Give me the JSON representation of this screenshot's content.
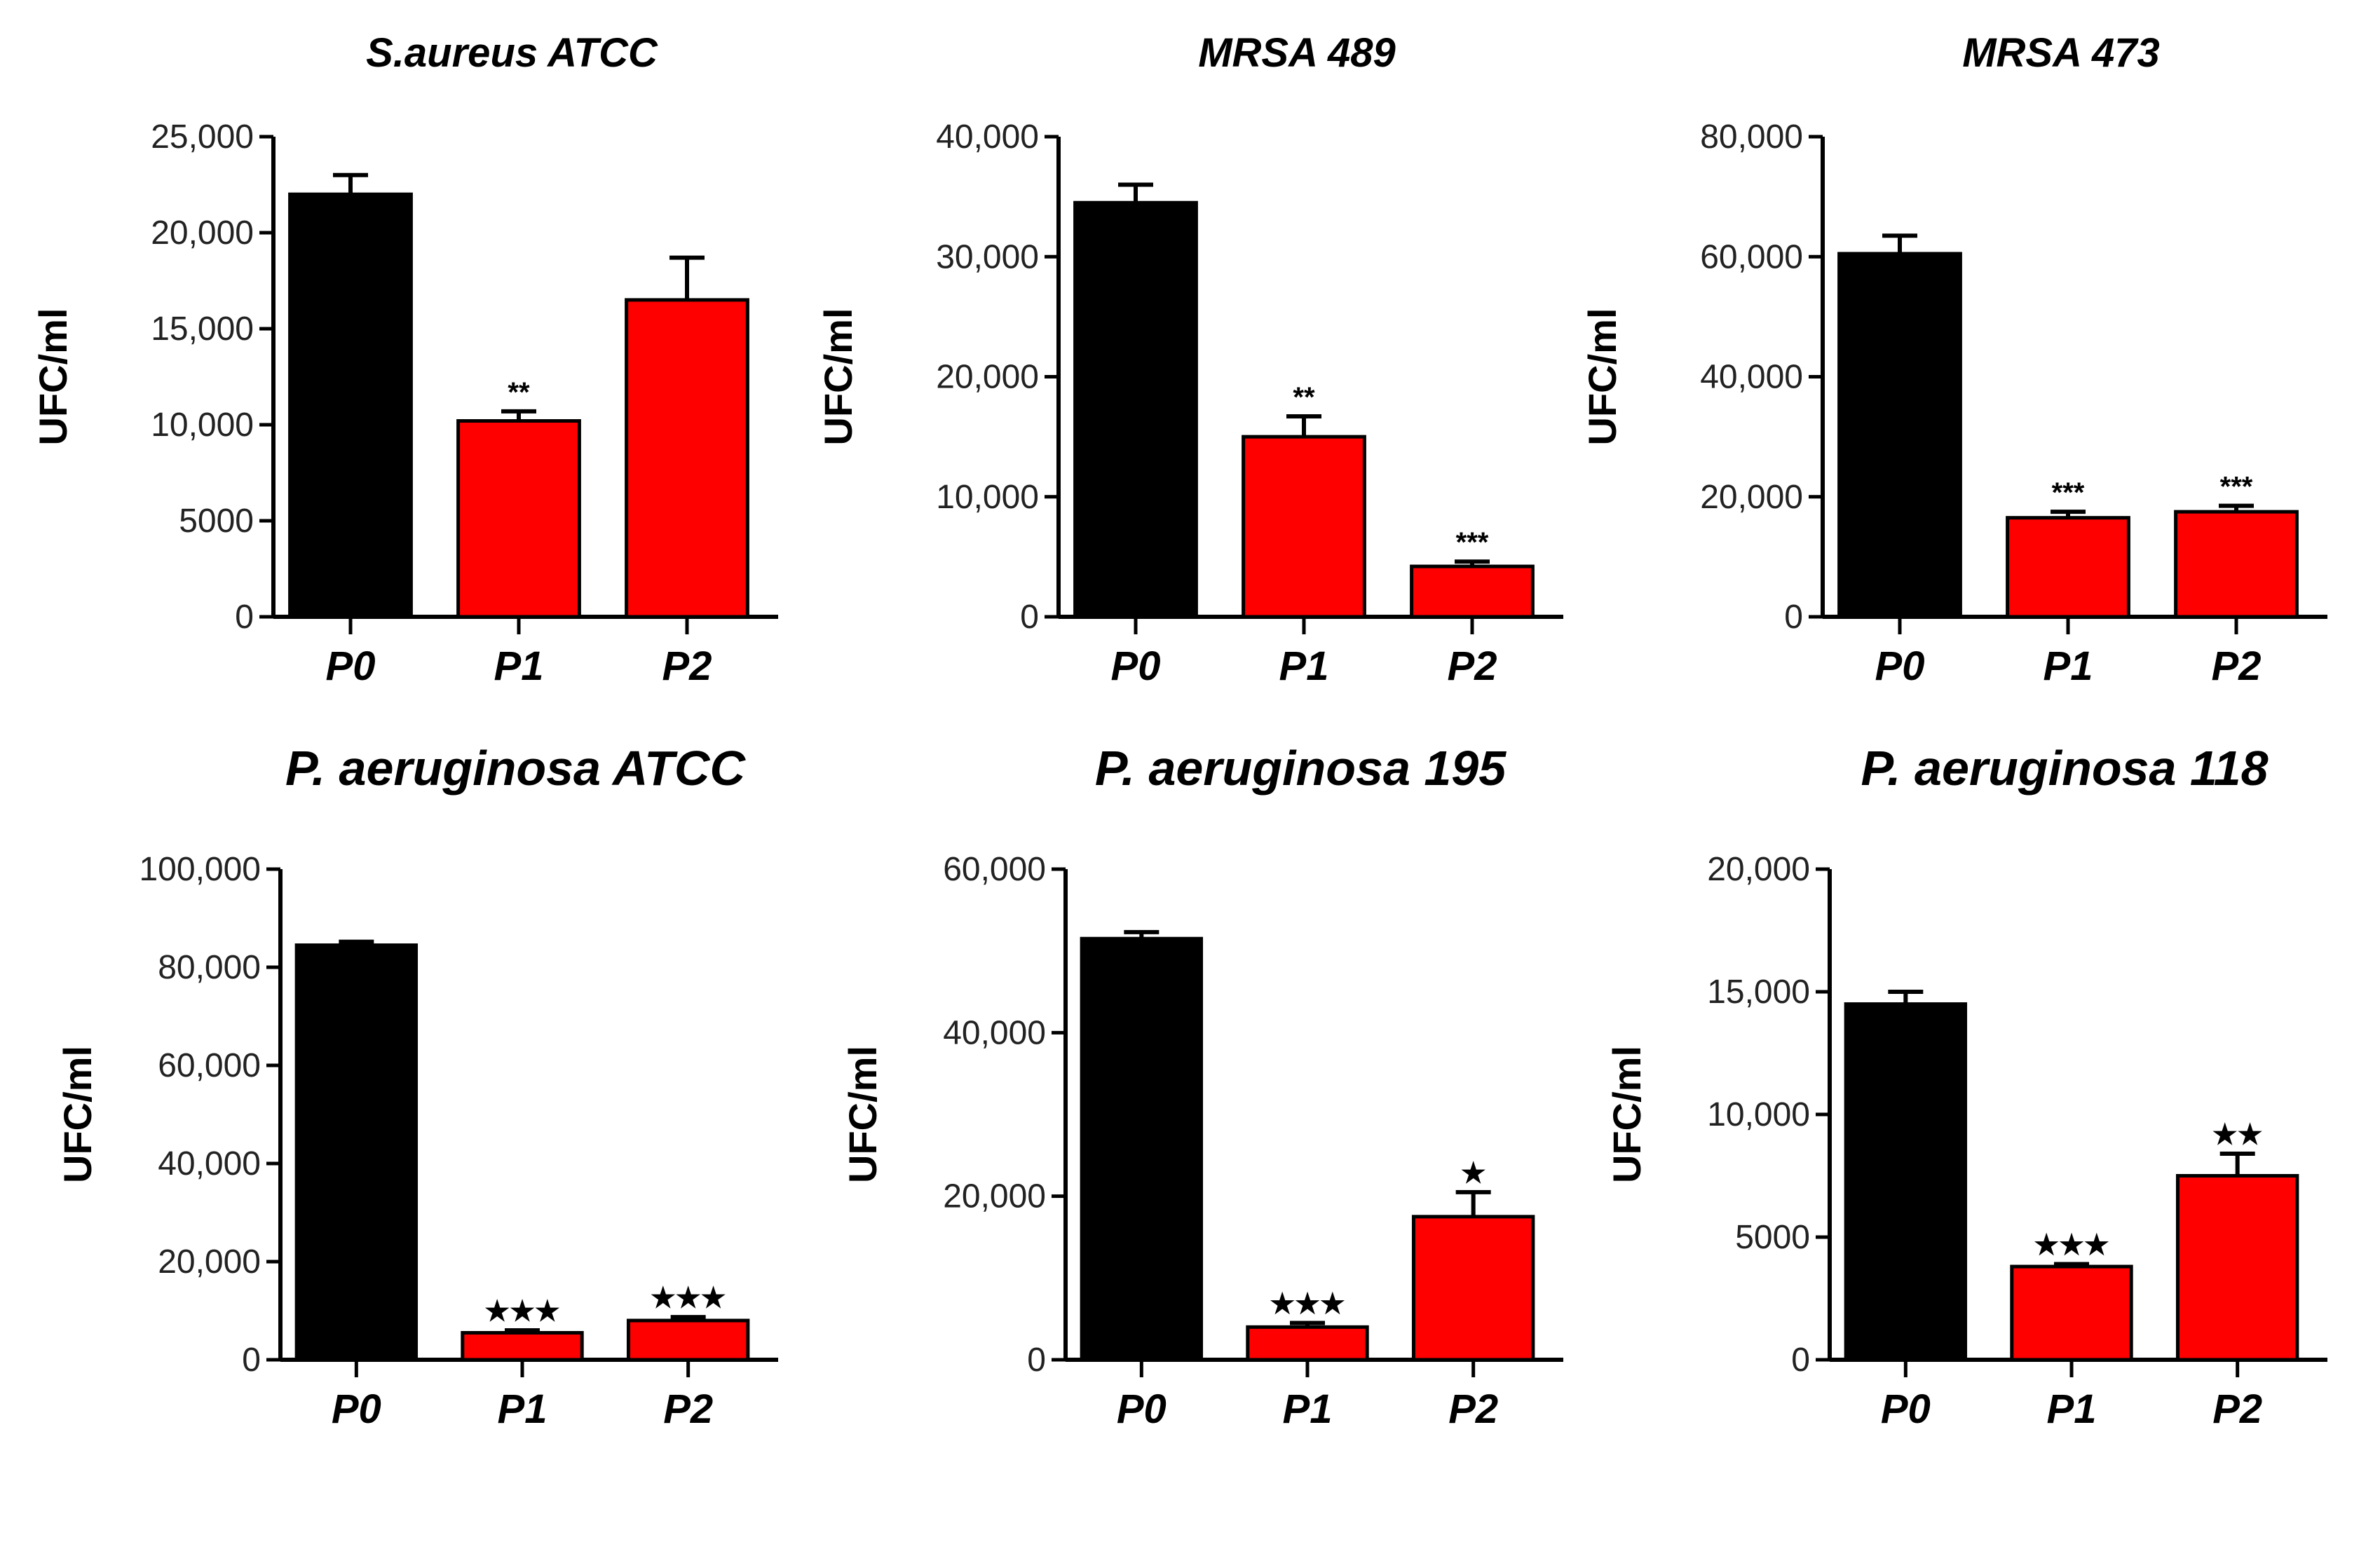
{
  "colors": {
    "control": "#000000",
    "treated": "#ff0000"
  },
  "chart_data": [
    {
      "type": "bar",
      "title": "S.aureus ATCC",
      "ylabel": "UFC/ml",
      "categories": [
        "P0",
        "P1",
        "P2"
      ],
      "values": [
        22000,
        10200,
        16500
      ],
      "errors": [
        1000,
        500,
        2200
      ],
      "significance": [
        "",
        "**",
        ""
      ],
      "ylim": [
        0,
        25000
      ],
      "yticks": [
        0,
        5000,
        10000,
        15000,
        20000,
        25000
      ],
      "ytick_labels": [
        "0",
        "5000",
        "10,000",
        "15,000",
        "20,000",
        "25,000"
      ]
    },
    {
      "type": "bar",
      "title": "MRSA 489",
      "ylabel": "UFC/ml",
      "categories": [
        "P0",
        "P1",
        "P2"
      ],
      "values": [
        34500,
        15000,
        4200
      ],
      "errors": [
        1500,
        1700,
        400
      ],
      "significance": [
        "",
        "**",
        "***"
      ],
      "ylim": [
        0,
        40000
      ],
      "yticks": [
        0,
        10000,
        20000,
        30000,
        40000
      ],
      "ytick_labels": [
        "0",
        "10,000",
        "20,000",
        "30,000",
        "40,000"
      ]
    },
    {
      "type": "bar",
      "title": "MRSA 473",
      "ylabel": "UFC/ml",
      "categories": [
        "P0",
        "P1",
        "P2"
      ],
      "values": [
        60500,
        16500,
        17500
      ],
      "errors": [
        3000,
        1000,
        1000
      ],
      "significance": [
        "",
        "***",
        "***"
      ],
      "ylim": [
        0,
        80000
      ],
      "yticks": [
        0,
        20000,
        40000,
        60000,
        80000
      ],
      "ytick_labels": [
        "0",
        "20,000",
        "40,000",
        "60,000",
        "80,000"
      ]
    },
    {
      "type": "bar",
      "title": "P. aeruginosa ATCC",
      "ylabel": "UFC/ml",
      "categories": [
        "P0",
        "P1",
        "P2"
      ],
      "values": [
        84500,
        5500,
        8000
      ],
      "errors": [
        700,
        500,
        700
      ],
      "significance": [
        "",
        "★★★",
        "★★★"
      ],
      "ylim": [
        0,
        100000
      ],
      "yticks": [
        0,
        20000,
        40000,
        60000,
        80000,
        100000
      ],
      "ytick_labels": [
        "0",
        "20,000",
        "40,000",
        "60,000",
        "80,000",
        "100,000"
      ]
    },
    {
      "type": "bar",
      "title": "P. aeruginosa 195",
      "ylabel": "UFC/ml",
      "categories": [
        "P0",
        "P1",
        "P2"
      ],
      "values": [
        51500,
        4000,
        17500
      ],
      "errors": [
        800,
        500,
        3000
      ],
      "significance": [
        "",
        "★★★",
        "★"
      ],
      "ylim": [
        0,
        60000
      ],
      "yticks": [
        0,
        20000,
        40000,
        60000
      ],
      "ytick_labels": [
        "0",
        "20,000",
        "40,000",
        "60,000"
      ]
    },
    {
      "type": "bar",
      "title": "P. aeruginosa 118",
      "ylabel": "UFC/ml",
      "categories": [
        "P0",
        "P1",
        "P2"
      ],
      "values": [
        14500,
        3800,
        7500
      ],
      "errors": [
        500,
        100,
        900
      ],
      "significance": [
        "",
        "★★★",
        "★★"
      ],
      "ylim": [
        0,
        20000
      ],
      "yticks": [
        0,
        5000,
        10000,
        15000,
        20000
      ],
      "ytick_labels": [
        "0",
        "5000",
        "10,000",
        "15,000",
        "20,000"
      ]
    }
  ]
}
